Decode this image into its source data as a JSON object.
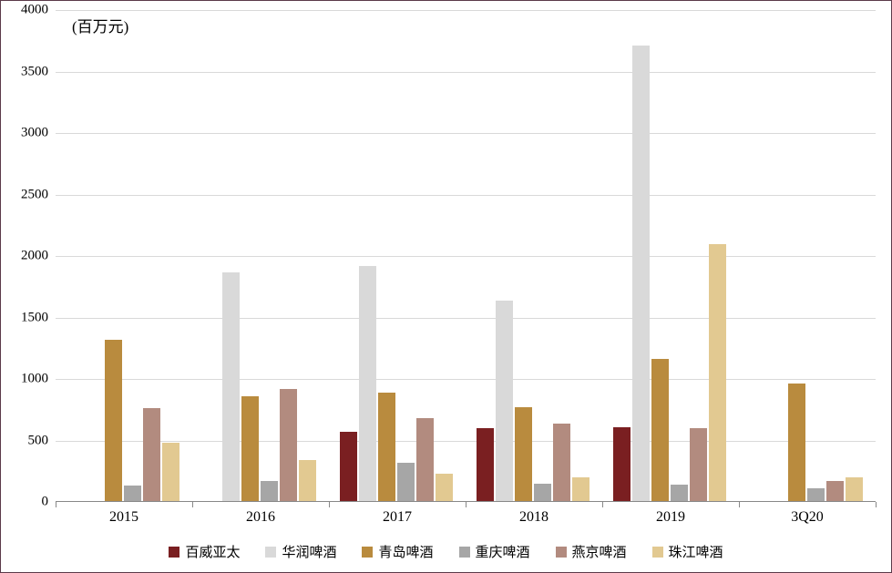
{
  "chart": {
    "type": "bar",
    "unit_label": "(百万元)",
    "background_color": "#ffffff",
    "border_color": "#5b3a4a",
    "grid_color": "#d9d9d9",
    "axis_color": "#888888",
    "ylim": [
      0,
      4000
    ],
    "ytick_step": 500,
    "yticks": [
      0,
      500,
      1000,
      1500,
      2000,
      2500,
      3000,
      3500,
      4000
    ],
    "label_fontsize": 15,
    "categories": [
      "2015",
      "2016",
      "2017",
      "2018",
      "2019",
      "3Q20"
    ],
    "series": [
      {
        "name": "百威亚太",
        "color": "#7a1f21",
        "values": [
          null,
          null,
          570,
          600,
          610,
          null
        ]
      },
      {
        "name": "华润啤酒",
        "color": "#d9d9d9",
        "values": [
          null,
          1870,
          1920,
          1640,
          3710,
          null
        ]
      },
      {
        "name": "青岛啤酒",
        "color": "#b98b3e",
        "values": [
          1320,
          860,
          890,
          770,
          1160,
          960
        ]
      },
      {
        "name": "重庆啤酒",
        "color": "#a6a6a6",
        "values": [
          130,
          170,
          320,
          150,
          140,
          110
        ]
      },
      {
        "name": "燕京啤酒",
        "color": "#b28b7f",
        "values": [
          760,
          920,
          680,
          640,
          600,
          170
        ]
      },
      {
        "name": "珠江啤酒",
        "color": "#e2c991",
        "values": [
          480,
          340,
          230,
          200,
          2100,
          200
        ]
      }
    ],
    "bar_width_ratio": 0.12,
    "group_gap_ratio": 0.16
  }
}
